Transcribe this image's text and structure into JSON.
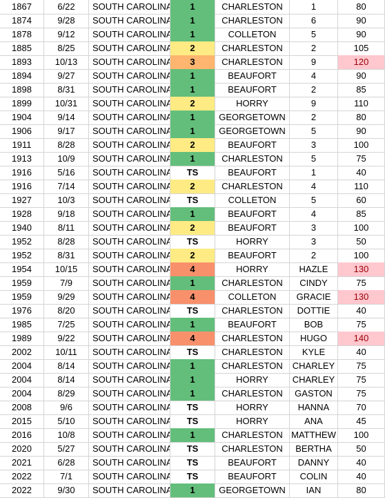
{
  "table": {
    "rows": [
      [
        "1867",
        "6/22",
        "SOUTH CAROLINA",
        "1",
        "CHARLESTON",
        "1",
        "80"
      ],
      [
        "1874",
        "9/28",
        "SOUTH CAROLINA",
        "1",
        "CHARLESTON",
        "6",
        "90"
      ],
      [
        "1878",
        "9/12",
        "SOUTH CAROLINA",
        "1",
        "COLLETON",
        "5",
        "90"
      ],
      [
        "1885",
        "8/25",
        "SOUTH CAROLINA",
        "2",
        "CHARLESTON",
        "2",
        "105"
      ],
      [
        "1893",
        "10/13",
        "SOUTH CAROLINA",
        "3",
        "CHARLESTON",
        "9",
        "120"
      ],
      [
        "1894",
        "9/27",
        "SOUTH CAROLINA",
        "1",
        "BEAUFORT",
        "4",
        "90"
      ],
      [
        "1898",
        "8/31",
        "SOUTH CAROLINA",
        "1",
        "BEAUFORT",
        "2",
        "85"
      ],
      [
        "1899",
        "10/31",
        "SOUTH CAROLINA",
        "2",
        "HORRY",
        "9",
        "110"
      ],
      [
        "1904",
        "9/14",
        "SOUTH CAROLINA",
        "1",
        "GEORGETOWN",
        "2",
        "80"
      ],
      [
        "1906",
        "9/17",
        "SOUTH CAROLINA",
        "1",
        "GEORGETOWN",
        "5",
        "90"
      ],
      [
        "1911",
        "8/28",
        "SOUTH CAROLINA",
        "2",
        "BEAUFORT",
        "3",
        "100"
      ],
      [
        "1913",
        "10/9",
        "SOUTH CAROLINA",
        "1",
        "CHARLESTON",
        "5",
        "75"
      ],
      [
        "1916",
        "5/16",
        "SOUTH CAROLINA",
        "TS",
        "BEAUFORT",
        "1",
        "40"
      ],
      [
        "1916",
        "7/14",
        "SOUTH CAROLINA",
        "2",
        "CHARLESTON",
        "4",
        "110"
      ],
      [
        "1927",
        "10/3",
        "SOUTH CAROLINA",
        "TS",
        "COLLETON",
        "5",
        "60"
      ],
      [
        "1928",
        "9/18",
        "SOUTH CAROLINA",
        "1",
        "BEAUFORT",
        "4",
        "85"
      ],
      [
        "1940",
        "8/11",
        "SOUTH CAROLINA",
        "2",
        "BEAUFORT",
        "3",
        "100"
      ],
      [
        "1952",
        "8/28",
        "SOUTH CAROLINA",
        "TS",
        "HORRY",
        "3",
        "50"
      ],
      [
        "1952",
        "8/31",
        "SOUTH CAROLINA",
        "2",
        "BEAUFORT",
        "2",
        "100"
      ],
      [
        "1954",
        "10/15",
        "SOUTH CAROLINA",
        "4",
        "HORRY",
        "HAZLE",
        "130"
      ],
      [
        "1959",
        "7/9",
        "SOUTH CAROLINA",
        "1",
        "CHARLESTON",
        "CINDY",
        "75"
      ],
      [
        "1959",
        "9/29",
        "SOUTH CAROLINA",
        "4",
        "COLLETON",
        "GRACIE",
        "130"
      ],
      [
        "1976",
        "8/20",
        "SOUTH CAROLINA",
        "TS",
        "CHARLESTON",
        "DOTTIE",
        "40"
      ],
      [
        "1985",
        "7/25",
        "SOUTH CAROLINA",
        "1",
        "BEAUFORT",
        "BOB",
        "75"
      ],
      [
        "1989",
        "9/22",
        "SOUTH CAROLINA",
        "4",
        "CHARLESTON",
        "HUGO",
        "140"
      ],
      [
        "2002",
        "10/11",
        "SOUTH CAROLINA",
        "TS",
        "CHARLESTON",
        "KYLE",
        "40"
      ],
      [
        "2004",
        "8/14",
        "SOUTH CAROLINA",
        "1",
        "CHARLESTON",
        "CHARLEY",
        "75"
      ],
      [
        "2004",
        "8/14",
        "SOUTH CAROLINA",
        "1",
        "HORRY",
        "CHARLEY",
        "75"
      ],
      [
        "2004",
        "8/29",
        "SOUTH CAROLINA",
        "1",
        "CHARLESTON",
        "GASTON",
        "75"
      ],
      [
        "2008",
        "9/6",
        "SOUTH CAROLINA",
        "TS",
        "HORRY",
        "HANNA",
        "70"
      ],
      [
        "2015",
        "5/10",
        "SOUTH CAROLINA",
        "TS",
        "HORRY",
        "ANA",
        "45"
      ],
      [
        "2016",
        "10/8",
        "SOUTH CAROLINA",
        "1",
        "CHARLESTON",
        "MATTHEW",
        "100"
      ],
      [
        "2020",
        "5/27",
        "SOUTH CAROLINA",
        "TS",
        "CHARLESTON",
        "BERTHA",
        "50"
      ],
      [
        "2021",
        "6/28",
        "SOUTH CAROLINA",
        "TS",
        "BEAUFORT",
        "DANNY",
        "40"
      ],
      [
        "2022",
        "7/1",
        "SOUTH CAROLINA",
        "TS",
        "BEAUFORT",
        "COLIN",
        "40"
      ],
      [
        "2022",
        "9/30",
        "SOUTH CAROLINA",
        "1",
        "GEORGETOWN",
        "IAN",
        "80"
      ]
    ],
    "category_colors": {
      "1": "#63be7b",
      "2": "#ffeb84",
      "3": "#fdb56f",
      "4": "#f8906c"
    },
    "wind_highlight": {
      "min": 120,
      "fill": "#ffc7ce",
      "color": "#9c0006"
    }
  }
}
